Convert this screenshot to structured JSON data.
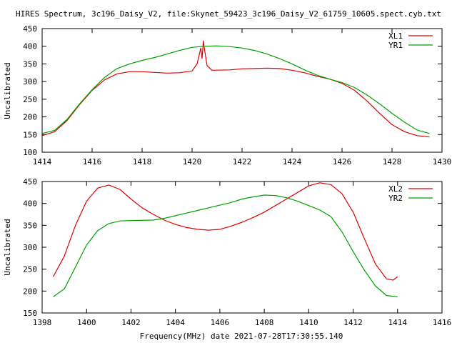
{
  "title": "HIRES Spectrum, 3c196_Daisy_V2, file:Skynet_59423_3c196_Daisy_V2_61759_10605.spect.cyb.txt",
  "xlabel": "Frequency(MHz) date 2021-07-28T17:30:55.140",
  "colors": {
    "red": "#dd0000",
    "green": "#00a000"
  },
  "chart_data": [
    {
      "type": "line",
      "ylabel": "Uncalibrated",
      "xlim": [
        1414,
        1430
      ],
      "ylim": [
        100,
        450
      ],
      "xticks": [
        1414,
        1416,
        1418,
        1420,
        1422,
        1424,
        1426,
        1428,
        1430
      ],
      "yticks": [
        100,
        150,
        200,
        250,
        300,
        350,
        400,
        450
      ],
      "series": [
        {
          "name": "XL1",
          "color": "#dd0000",
          "points": [
            [
              1414.0,
              147
            ],
            [
              1414.5,
              158
            ],
            [
              1415.0,
              190
            ],
            [
              1415.5,
              235
            ],
            [
              1416.0,
              275
            ],
            [
              1416.5,
              305
            ],
            [
              1417.0,
              322
            ],
            [
              1417.5,
              328
            ],
            [
              1418.0,
              328
            ],
            [
              1418.5,
              326
            ],
            [
              1419.0,
              324
            ],
            [
              1419.5,
              325
            ],
            [
              1420.0,
              330
            ],
            [
              1420.2,
              350
            ],
            [
              1420.35,
              395
            ],
            [
              1420.4,
              365
            ],
            [
              1420.45,
              415
            ],
            [
              1420.5,
              390
            ],
            [
              1420.6,
              345
            ],
            [
              1420.8,
              332
            ],
            [
              1421.5,
              333
            ],
            [
              1422.0,
              336
            ],
            [
              1423.0,
              338
            ],
            [
              1423.5,
              337
            ],
            [
              1424.0,
              332
            ],
            [
              1424.5,
              325
            ],
            [
              1425.0,
              315
            ],
            [
              1425.5,
              307
            ],
            [
              1426.0,
              295
            ],
            [
              1426.5,
              275
            ],
            [
              1427.0,
              245
            ],
            [
              1427.5,
              210
            ],
            [
              1428.0,
              178
            ],
            [
              1428.5,
              158
            ],
            [
              1429.0,
              147
            ],
            [
              1429.5,
              143
            ]
          ]
        },
        {
          "name": "YR1",
          "color": "#00a000",
          "points": [
            [
              1414.0,
              153
            ],
            [
              1414.5,
              162
            ],
            [
              1415.0,
              193
            ],
            [
              1415.5,
              237
            ],
            [
              1416.0,
              277
            ],
            [
              1416.5,
              312
            ],
            [
              1417.0,
              337
            ],
            [
              1417.5,
              350
            ],
            [
              1418.0,
              360
            ],
            [
              1418.5,
              368
            ],
            [
              1419.0,
              378
            ],
            [
              1419.5,
              388
            ],
            [
              1420.0,
              397
            ],
            [
              1420.5,
              400
            ],
            [
              1421.0,
              401
            ],
            [
              1421.5,
              399
            ],
            [
              1422.0,
              395
            ],
            [
              1422.5,
              388
            ],
            [
              1423.0,
              378
            ],
            [
              1423.5,
              365
            ],
            [
              1424.0,
              350
            ],
            [
              1424.5,
              333
            ],
            [
              1425.0,
              318
            ],
            [
              1425.5,
              307
            ],
            [
              1426.0,
              297
            ],
            [
              1426.5,
              283
            ],
            [
              1427.0,
              262
            ],
            [
              1427.5,
              237
            ],
            [
              1428.0,
              210
            ],
            [
              1428.5,
              185
            ],
            [
              1429.0,
              163
            ],
            [
              1429.5,
              153
            ]
          ]
        }
      ]
    },
    {
      "type": "line",
      "ylabel": "Uncalibrated",
      "xlim": [
        1398,
        1416
      ],
      "ylim": [
        150,
        450
      ],
      "xticks": [
        1398,
        1400,
        1402,
        1404,
        1406,
        1408,
        1410,
        1412,
        1414,
        1416
      ],
      "yticks": [
        150,
        200,
        250,
        300,
        350,
        400,
        450
      ],
      "series": [
        {
          "name": "XL2",
          "color": "#dd0000",
          "points": [
            [
              1398.5,
              233
            ],
            [
              1399.0,
              280
            ],
            [
              1399.5,
              350
            ],
            [
              1400.0,
              405
            ],
            [
              1400.5,
              435
            ],
            [
              1401.0,
              442
            ],
            [
              1401.5,
              432
            ],
            [
              1402.0,
              410
            ],
            [
              1402.5,
              390
            ],
            [
              1403.0,
              375
            ],
            [
              1403.5,
              362
            ],
            [
              1404.0,
              352
            ],
            [
              1404.5,
              345
            ],
            [
              1405.0,
              341
            ],
            [
              1405.5,
              339
            ],
            [
              1406.0,
              341
            ],
            [
              1406.5,
              348
            ],
            [
              1407.0,
              357
            ],
            [
              1407.5,
              368
            ],
            [
              1408.0,
              380
            ],
            [
              1408.5,
              395
            ],
            [
              1409.0,
              410
            ],
            [
              1409.5,
              425
            ],
            [
              1410.0,
              440
            ],
            [
              1410.5,
              447
            ],
            [
              1411.0,
              443
            ],
            [
              1411.5,
              422
            ],
            [
              1412.0,
              380
            ],
            [
              1412.5,
              320
            ],
            [
              1413.0,
              262
            ],
            [
              1413.5,
              228
            ],
            [
              1413.8,
              225
            ],
            [
              1414.0,
              233
            ]
          ]
        },
        {
          "name": "YR2",
          "color": "#00a000",
          "points": [
            [
              1398.5,
              187
            ],
            [
              1399.0,
              205
            ],
            [
              1399.5,
              255
            ],
            [
              1400.0,
              305
            ],
            [
              1400.5,
              338
            ],
            [
              1401.0,
              354
            ],
            [
              1401.5,
              360
            ],
            [
              1402.0,
              361
            ],
            [
              1403.0,
              362
            ],
            [
              1403.5,
              366
            ],
            [
              1404.0,
              372
            ],
            [
              1404.5,
              378
            ],
            [
              1405.0,
              384
            ],
            [
              1405.5,
              390
            ],
            [
              1406.0,
              396
            ],
            [
              1406.5,
              402
            ],
            [
              1407.0,
              410
            ],
            [
              1407.5,
              415
            ],
            [
              1408.0,
              419
            ],
            [
              1408.5,
              418
            ],
            [
              1409.0,
              413
            ],
            [
              1409.5,
              405
            ],
            [
              1410.0,
              395
            ],
            [
              1410.5,
              385
            ],
            [
              1411.0,
              370
            ],
            [
              1411.5,
              335
            ],
            [
              1412.0,
              290
            ],
            [
              1412.5,
              248
            ],
            [
              1413.0,
              212
            ],
            [
              1413.5,
              190
            ],
            [
              1414.0,
              187
            ]
          ]
        }
      ]
    }
  ]
}
